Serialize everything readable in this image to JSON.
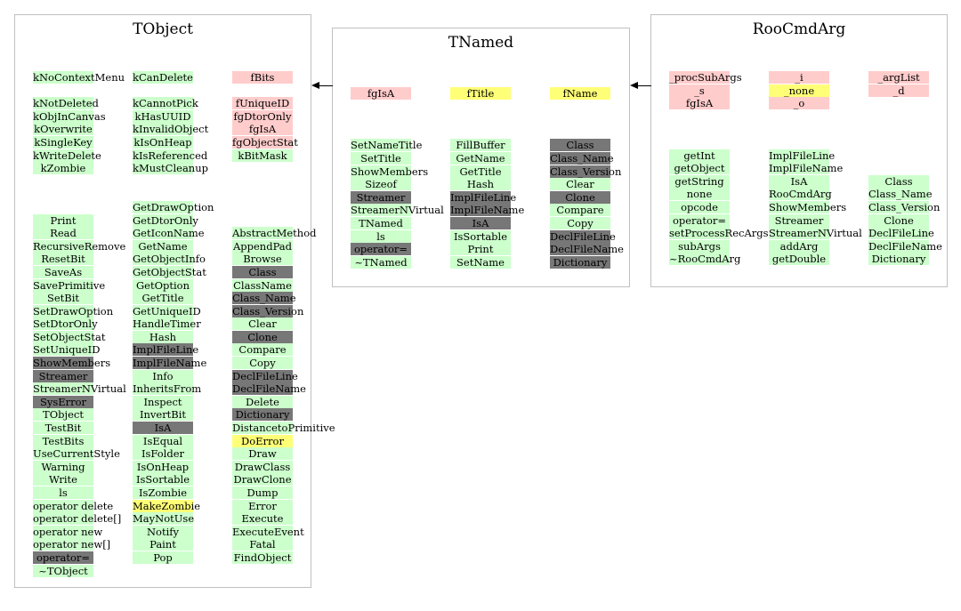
{
  "colors": {
    "green": "#ccffcc",
    "pink": "#ffcccc",
    "yellow": "#ffff77",
    "dark": "#777777"
  },
  "classes": [
    {
      "id": "tobject",
      "title": "TObject",
      "columns": [
        {
          "id": "tobject-col1",
          "cells": [
            [
              "kNoContextMenu",
              "green"
            ],
            [
              "",
              ""
            ],
            [
              "kNotDeleted",
              "green"
            ],
            [
              "kObjInCanvas",
              "green"
            ],
            [
              "kOverwrite",
              "green"
            ],
            [
              "kSingleKey",
              "green"
            ],
            [
              "kWriteDelete",
              "green"
            ],
            [
              "kZombie",
              "green"
            ],
            [
              "",
              ""
            ],
            [
              "",
              ""
            ],
            [
              "",
              ""
            ],
            [
              "Print",
              "green"
            ],
            [
              "Read",
              "green"
            ],
            [
              "RecursiveRemove",
              "green"
            ],
            [
              "ResetBit",
              "green"
            ],
            [
              "SaveAs",
              "green"
            ],
            [
              "SavePrimitive",
              "green"
            ],
            [
              "SetBit",
              "green"
            ],
            [
              "SetDrawOption",
              "green"
            ],
            [
              "SetDtorOnly",
              "green"
            ],
            [
              "SetObjectStat",
              "green"
            ],
            [
              "SetUniqueID",
              "green"
            ],
            [
              "ShowMembers",
              "dark"
            ],
            [
              "Streamer",
              "dark"
            ],
            [
              "StreamerNVirtual",
              "green"
            ],
            [
              "SysError",
              "dark"
            ],
            [
              "TObject",
              "green"
            ],
            [
              "TestBit",
              "green"
            ],
            [
              "TestBits",
              "green"
            ],
            [
              "UseCurrentStyle",
              "green"
            ],
            [
              "Warning",
              "green"
            ],
            [
              "Write",
              "green"
            ],
            [
              "ls",
              "green"
            ],
            [
              "operator delete",
              "green"
            ],
            [
              "operator delete[]",
              "green"
            ],
            [
              "operator new",
              "green"
            ],
            [
              "operator new[]",
              "green"
            ],
            [
              "operator=",
              "dark"
            ],
            [
              "~TObject",
              "green"
            ]
          ]
        },
        {
          "id": "tobject-col2",
          "cells": [
            [
              "kCanDelete",
              "green"
            ],
            [
              "",
              ""
            ],
            [
              "kCannotPick",
              "green"
            ],
            [
              "kHasUUID",
              "green"
            ],
            [
              "kInvalidObject",
              "green"
            ],
            [
              "kIsOnHeap",
              "green"
            ],
            [
              "kIsReferenced",
              "green"
            ],
            [
              "kMustCleanup",
              "green"
            ],
            [
              "",
              ""
            ],
            [
              "",
              ""
            ],
            [
              "GetDrawOption",
              "green"
            ],
            [
              "GetDtorOnly",
              "green"
            ],
            [
              "GetIconName",
              "green"
            ],
            [
              "GetName",
              "green"
            ],
            [
              "GetObjectInfo",
              "green"
            ],
            [
              "GetObjectStat",
              "green"
            ],
            [
              "GetOption",
              "green"
            ],
            [
              "GetTitle",
              "green"
            ],
            [
              "GetUniqueID",
              "green"
            ],
            [
              "HandleTimer",
              "green"
            ],
            [
              "Hash",
              "green"
            ],
            [
              "ImplFileLine",
              "dark"
            ],
            [
              "ImplFileName",
              "dark"
            ],
            [
              "Info",
              "green"
            ],
            [
              "InheritsFrom",
              "green"
            ],
            [
              "Inspect",
              "green"
            ],
            [
              "InvertBit",
              "green"
            ],
            [
              "IsA",
              "dark"
            ],
            [
              "IsEqual",
              "green"
            ],
            [
              "IsFolder",
              "green"
            ],
            [
              "IsOnHeap",
              "green"
            ],
            [
              "IsSortable",
              "green"
            ],
            [
              "IsZombie",
              "green"
            ],
            [
              "MakeZombie",
              "yellow"
            ],
            [
              "MayNotUse",
              "green"
            ],
            [
              "Notify",
              "green"
            ],
            [
              "Paint",
              "green"
            ],
            [
              "Pop",
              "green"
            ]
          ]
        },
        {
          "id": "tobject-col3",
          "cells": [
            [
              "fBits",
              "pink"
            ],
            [
              "",
              ""
            ],
            [
              "fUniqueID",
              "pink"
            ],
            [
              "fgDtorOnly",
              "pink"
            ],
            [
              "fgIsA",
              "pink"
            ],
            [
              "fgObjectStat",
              "pink"
            ],
            [
              "kBitMask",
              "green"
            ],
            [
              "",
              ""
            ],
            [
              "",
              ""
            ],
            [
              "",
              ""
            ],
            [
              "",
              ""
            ],
            [
              "",
              ""
            ],
            [
              "AbstractMethod",
              "green"
            ],
            [
              "AppendPad",
              "green"
            ],
            [
              "Browse",
              "green"
            ],
            [
              "Class",
              "dark"
            ],
            [
              "ClassName",
              "green"
            ],
            [
              "Class_Name",
              "dark"
            ],
            [
              "Class_Version",
              "dark"
            ],
            [
              "Clear",
              "green"
            ],
            [
              "Clone",
              "dark"
            ],
            [
              "Compare",
              "green"
            ],
            [
              "Copy",
              "green"
            ],
            [
              "DeclFileLine",
              "dark"
            ],
            [
              "DeclFileName",
              "dark"
            ],
            [
              "Delete",
              "green"
            ],
            [
              "Dictionary",
              "dark"
            ],
            [
              "DistancetoPrimitive",
              "green"
            ],
            [
              "DoError",
              "yellow"
            ],
            [
              "Draw",
              "green"
            ],
            [
              "DrawClass",
              "green"
            ],
            [
              "DrawClone",
              "green"
            ],
            [
              "Dump",
              "green"
            ],
            [
              "Error",
              "green"
            ],
            [
              "Execute",
              "green"
            ],
            [
              "ExecuteEvent",
              "green"
            ],
            [
              "Fatal",
              "green"
            ],
            [
              "FindObject",
              "green"
            ]
          ]
        }
      ]
    },
    {
      "id": "tnamed",
      "title": "TNamed",
      "columns": [
        {
          "id": "tnamed-col1",
          "cells": [
            [
              "fgIsA",
              "pink"
            ],
            [
              "",
              ""
            ],
            [
              "",
              ""
            ],
            [
              "",
              ""
            ],
            [
              "SetNameTitle",
              "green"
            ],
            [
              "SetTitle",
              "green"
            ],
            [
              "ShowMembers",
              "green"
            ],
            [
              "Sizeof",
              "green"
            ],
            [
              "Streamer",
              "dark"
            ],
            [
              "StreamerNVirtual",
              "green"
            ],
            [
              "TNamed",
              "green"
            ],
            [
              "ls",
              "green"
            ],
            [
              "operator=",
              "dark"
            ],
            [
              "~TNamed",
              "green"
            ]
          ]
        },
        {
          "id": "tnamed-col2",
          "cells": [
            [
              "fTitle",
              "yellow"
            ],
            [
              "",
              ""
            ],
            [
              "",
              ""
            ],
            [
              "",
              ""
            ],
            [
              "FillBuffer",
              "green"
            ],
            [
              "GetName",
              "green"
            ],
            [
              "GetTitle",
              "green"
            ],
            [
              "Hash",
              "green"
            ],
            [
              "ImplFileLine",
              "dark"
            ],
            [
              "ImplFileName",
              "dark"
            ],
            [
              "IsA",
              "dark"
            ],
            [
              "IsSortable",
              "green"
            ],
            [
              "Print",
              "green"
            ],
            [
              "SetName",
              "green"
            ]
          ]
        },
        {
          "id": "tnamed-col3",
          "cells": [
            [
              "fName",
              "yellow"
            ],
            [
              "",
              ""
            ],
            [
              "",
              ""
            ],
            [
              "",
              ""
            ],
            [
              "Class",
              "dark"
            ],
            [
              "Class_Name",
              "dark"
            ],
            [
              "Class_Version",
              "dark"
            ],
            [
              "Clear",
              "green"
            ],
            [
              "Clone",
              "dark"
            ],
            [
              "Compare",
              "green"
            ],
            [
              "Copy",
              "green"
            ],
            [
              "DeclFileLine",
              "dark"
            ],
            [
              "DeclFileName",
              "dark"
            ],
            [
              "Dictionary",
              "dark"
            ]
          ]
        }
      ]
    },
    {
      "id": "roocmdarg",
      "title": "RooCmdArg",
      "columns": [
        {
          "id": "roocmdarg-col1",
          "cells": [
            [
              "_procSubArgs",
              "pink"
            ],
            [
              "_s",
              "pink"
            ],
            [
              "fgIsA",
              "pink"
            ],
            [
              "",
              ""
            ],
            [
              "",
              ""
            ],
            [
              "",
              ""
            ],
            [
              "getInt",
              "green"
            ],
            [
              "getObject",
              "green"
            ],
            [
              "getString",
              "green"
            ],
            [
              "none",
              "green"
            ],
            [
              "opcode",
              "green"
            ],
            [
              "operator=",
              "green"
            ],
            [
              "setProcessRecArgs",
              "green"
            ],
            [
              "subArgs",
              "green"
            ],
            [
              "~RooCmdArg",
              "green"
            ]
          ]
        },
        {
          "id": "roocmdarg-col2",
          "cells": [
            [
              "_i",
              "pink"
            ],
            [
              "_none",
              "yellow"
            ],
            [
              "_o",
              "pink"
            ],
            [
              "",
              ""
            ],
            [
              "",
              ""
            ],
            [
              "",
              ""
            ],
            [
              "ImplFileLine",
              "green"
            ],
            [
              "ImplFileName",
              "green"
            ],
            [
              "IsA",
              "green"
            ],
            [
              "RooCmdArg",
              "green"
            ],
            [
              "ShowMembers",
              "green"
            ],
            [
              "Streamer",
              "green"
            ],
            [
              "StreamerNVirtual",
              "green"
            ],
            [
              "addArg",
              "green"
            ],
            [
              "getDouble",
              "green"
            ]
          ]
        },
        {
          "id": "roocmdarg-col3",
          "cells": [
            [
              "_argList",
              "pink"
            ],
            [
              "_d",
              "pink"
            ],
            [
              "",
              ""
            ],
            [
              "",
              ""
            ],
            [
              "",
              ""
            ],
            [
              "",
              ""
            ],
            [
              "",
              ""
            ],
            [
              "",
              ""
            ],
            [
              "Class",
              "green"
            ],
            [
              "Class_Name",
              "green"
            ],
            [
              "Class_Version",
              "green"
            ],
            [
              "Clone",
              "green"
            ],
            [
              "DeclFileLine",
              "green"
            ],
            [
              "DeclFileName",
              "green"
            ],
            [
              "Dictionary",
              "green"
            ]
          ]
        }
      ]
    }
  ]
}
